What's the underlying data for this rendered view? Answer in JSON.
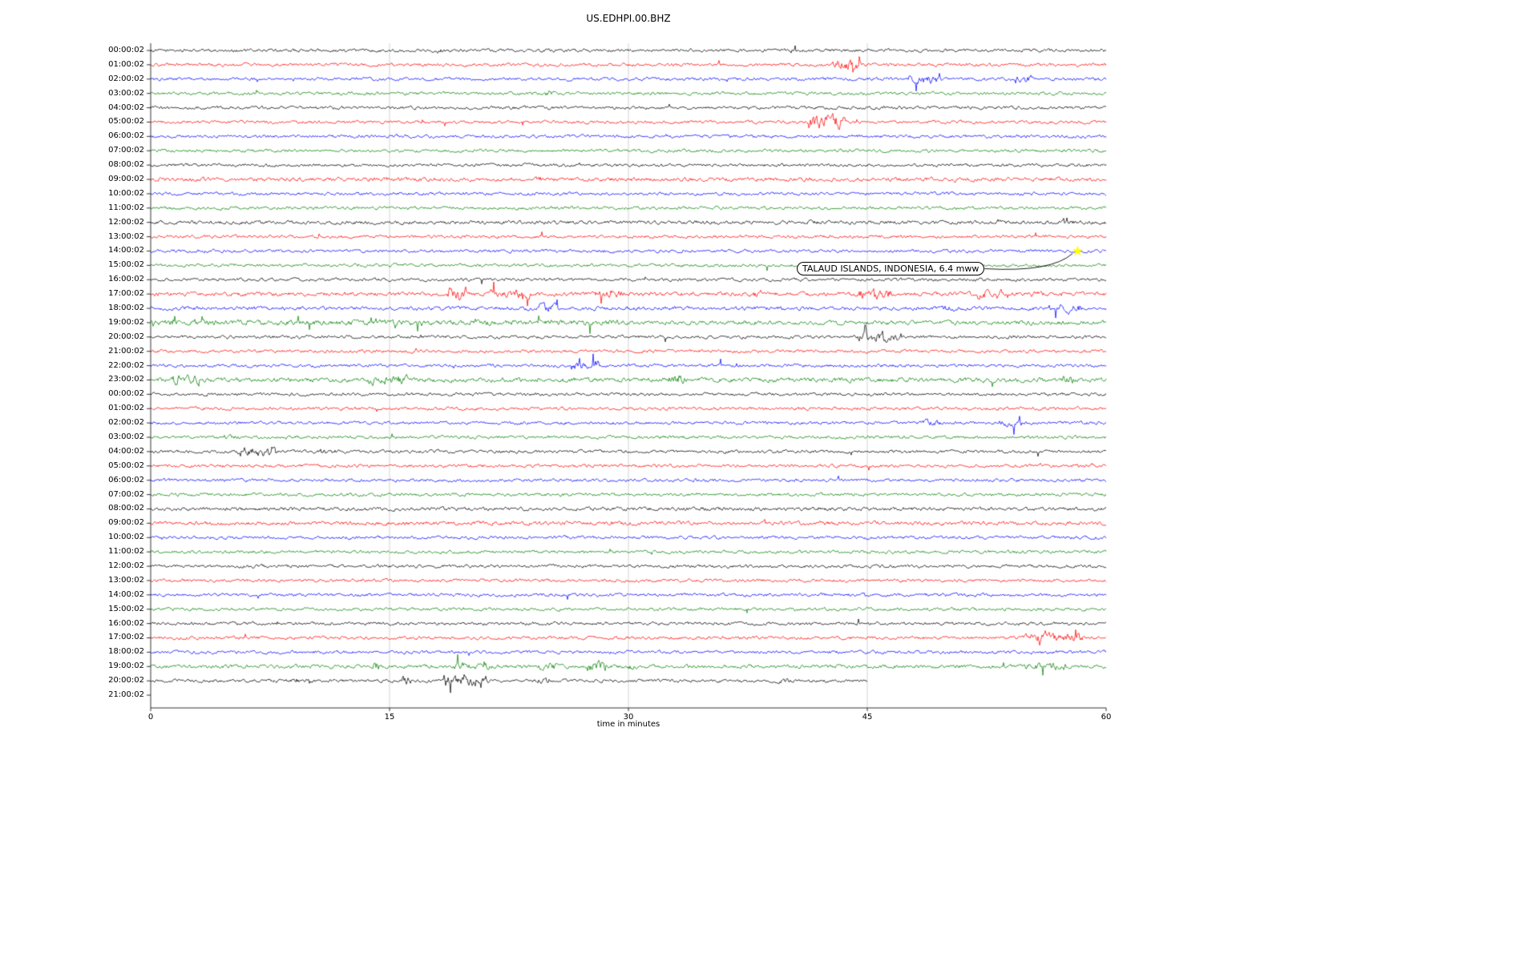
{
  "page": {
    "background": "#ffffff"
  },
  "chart_data": {
    "type": "line",
    "subtype": "helicorder-dayplot",
    "title": "US.EDHPI.00.BHZ",
    "xlabel": "time in minutes",
    "x_ticks": [
      0,
      15,
      30,
      45,
      60
    ],
    "x_range": [
      0,
      60
    ],
    "grid": {
      "vertical_at": [
        15,
        30,
        45
      ],
      "color": "#c8c8c8"
    },
    "colors_cycle": [
      "#000000",
      "#ff0000",
      "#0000ff",
      "#008000"
    ],
    "annotation": {
      "text": "TALAUD ISLANDS, INDONESIA, 6.4 mww",
      "target_row": 14,
      "target_row_label": "14:00:02",
      "target_min": 58.2,
      "marker": "star",
      "marker_color": "#ffff00"
    },
    "rows": [
      {
        "label": "00:00:02",
        "events": [
          [
            17.9,
            18.3,
            2.2
          ],
          [
            40.2,
            40.6,
            1.8
          ]
        ]
      },
      {
        "label": "01:00:02",
        "events": [
          [
            42.8,
            44.6,
            3.2
          ]
        ]
      },
      {
        "label": "02:00:02",
        "events": [
          [
            47.6,
            49.6,
            3.0
          ],
          [
            54.3,
            55.3,
            2.4
          ]
        ]
      },
      {
        "label": "03:00:02",
        "events": [
          [
            24.7,
            25.3,
            1.7
          ]
        ]
      },
      {
        "label": "04:00:02"
      },
      {
        "label": "05:00:02",
        "events": [
          [
            41.3,
            43.6,
            4.2
          ]
        ]
      },
      {
        "label": "06:00:02"
      },
      {
        "label": "07:00:02"
      },
      {
        "label": "08:00:02"
      },
      {
        "label": "09:00:02",
        "noise": 1.25
      },
      {
        "label": "10:00:02"
      },
      {
        "label": "11:00:02"
      },
      {
        "label": "12:00:02",
        "noise": 1.2
      },
      {
        "label": "13:00:02"
      },
      {
        "label": "14:00:02"
      },
      {
        "label": "15:00:02"
      },
      {
        "label": "16:00:02"
      },
      {
        "label": "17:00:02",
        "noise": 1.3,
        "events": [
          [
            18.6,
            19.9,
            3.4
          ],
          [
            21.3,
            23.8,
            1.9
          ],
          [
            27.9,
            29.8,
            1.9
          ],
          [
            37.4,
            38.4,
            1.7
          ],
          [
            44.4,
            46.6,
            2.4
          ],
          [
            51.9,
            53.9,
            2.4
          ],
          [
            55.1,
            56.1,
            1.6
          ]
        ]
      },
      {
        "label": "18:00:02",
        "noise": 1.2,
        "events": [
          [
            24.4,
            25.6,
            2.1
          ],
          [
            49.4,
            50.6,
            1.6
          ],
          [
            56.4,
            58.4,
            2.4
          ]
        ]
      },
      {
        "label": "19:00:02",
        "noise": 1.35,
        "events": [
          [
            0,
            30,
            1.25
          ]
        ]
      },
      {
        "label": "20:00:02",
        "events": [
          [
            44.4,
            47.2,
            3.0
          ]
        ]
      },
      {
        "label": "21:00:02"
      },
      {
        "label": "22:00:02",
        "events": [
          [
            26.4,
            28.2,
            2.8
          ]
        ]
      },
      {
        "label": "23:00:02",
        "noise": 1.45,
        "events": [
          [
            1.4,
            3.1,
            2.4
          ],
          [
            13.6,
            16.2,
            2.1
          ],
          [
            32.4,
            33.6,
            1.7
          ],
          [
            57.2,
            58.0,
            1.6
          ]
        ]
      },
      {
        "label": "00:00:02"
      },
      {
        "label": "01:00:02"
      },
      {
        "label": "02:00:02",
        "events": [
          [
            48.4,
            49.6,
            1.8
          ],
          [
            53.3,
            54.7,
            2.0
          ]
        ]
      },
      {
        "label": "03:00:02",
        "events": [
          [
            4.6,
            5.4,
            1.6
          ]
        ]
      },
      {
        "label": "04:00:02",
        "events": [
          [
            5.4,
            8.2,
            3.1
          ],
          [
            10.6,
            11.6,
            2.1
          ]
        ]
      },
      {
        "label": "05:00:02"
      },
      {
        "label": "06:00:02"
      },
      {
        "label": "07:00:02"
      },
      {
        "label": "08:00:02",
        "noise": 1.15
      },
      {
        "label": "09:00:02",
        "noise": 1.2
      },
      {
        "label": "10:00:02"
      },
      {
        "label": "11:00:02"
      },
      {
        "label": "12:00:02"
      },
      {
        "label": "13:00:02"
      },
      {
        "label": "14:00:02"
      },
      {
        "label": "15:00:02"
      },
      {
        "label": "16:00:02"
      },
      {
        "label": "17:00:02",
        "events": [
          [
            54.8,
            58.6,
            2.7
          ]
        ]
      },
      {
        "label": "18:00:02"
      },
      {
        "label": "19:00:02",
        "noise": 1.15,
        "events": [
          [
            13.9,
            14.5,
            2.4
          ],
          [
            18.9,
            21.2,
            1.8
          ],
          [
            24.4,
            25.6,
            2.1
          ],
          [
            27.4,
            28.6,
            3.2
          ],
          [
            29.8,
            30.6,
            2.0
          ],
          [
            54.8,
            57.6,
            1.9
          ]
        ]
      },
      {
        "label": "20:00:02",
        "end_min": 45,
        "events": [
          [
            8.4,
            10.6,
            1.5
          ],
          [
            15.8,
            16.4,
            2.8
          ],
          [
            18.4,
            21.2,
            3.3
          ],
          [
            24.3,
            25.1,
            2.0
          ],
          [
            39.4,
            40.1,
            1.5
          ]
        ]
      },
      {
        "label": "21:00:02",
        "end_min": 0
      }
    ]
  }
}
